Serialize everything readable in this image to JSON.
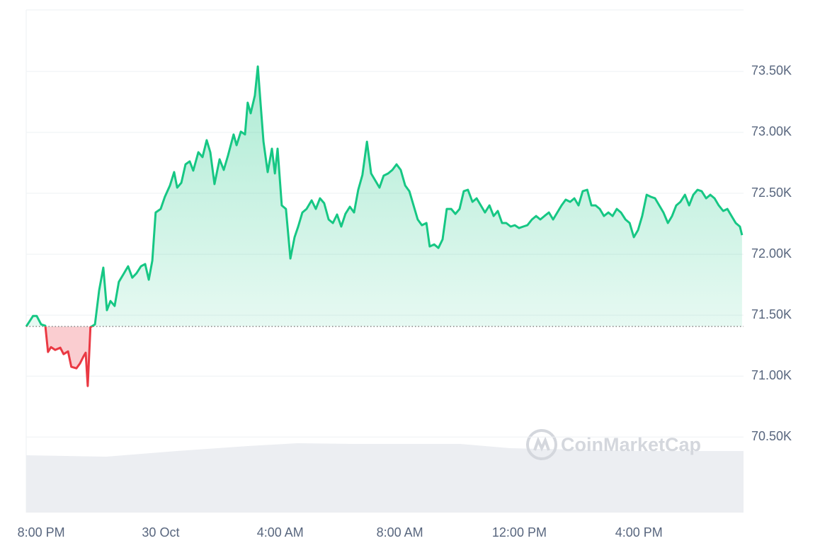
{
  "chart_data": {
    "type": "line",
    "watermark": "CoinMarketCap",
    "color": "#16c784",
    "negative_color": "#ea3943",
    "x": [
      -4.5,
      -4.27,
      -4.15,
      -4.0,
      -3.86,
      -3.77,
      -3.67,
      -3.53,
      -3.36,
      -3.25,
      -3.1,
      -2.99,
      -2.82,
      -2.7,
      -2.58,
      -2.51,
      -2.44,
      -2.35,
      -2.2,
      -2.06,
      -1.92,
      -1.8,
      -1.68,
      -1.54,
      -1.4,
      -1.23,
      -1.09,
      -0.95,
      -0.81,
      -0.66,
      -0.52,
      -0.4,
      -0.28,
      -0.17,
      0.0,
      0.14,
      0.31,
      0.45,
      0.55,
      0.69,
      0.83,
      0.97,
      1.09,
      1.26,
      1.4,
      1.54,
      1.66,
      1.8,
      1.97,
      2.11,
      2.25,
      2.44,
      2.54,
      2.68,
      2.82,
      2.91,
      3.01,
      3.15,
      3.25,
      3.34,
      3.44,
      3.58,
      3.72,
      3.82,
      3.91,
      4.05,
      4.19,
      4.34,
      4.48,
      4.6,
      4.74,
      4.88,
      5.05,
      5.19,
      5.33,
      5.47,
      5.62,
      5.76,
      5.9,
      6.04,
      6.18,
      6.33,
      6.47,
      6.61,
      6.75,
      6.9,
      7.04,
      7.18,
      7.32,
      7.46,
      7.61,
      7.75,
      7.89,
      8.03,
      8.18,
      8.32,
      8.46,
      8.6,
      8.74,
      8.89,
      9.0,
      9.15,
      9.29,
      9.43,
      9.57,
      9.72,
      9.86,
      10.0,
      10.14,
      10.28,
      10.43,
      10.57,
      10.71,
      10.85,
      11.0,
      11.14,
      11.28,
      11.42,
      11.56,
      11.71,
      11.85,
      11.99,
      12.13,
      12.27,
      12.42,
      12.56,
      12.7,
      12.84,
      12.99,
      13.13,
      13.27,
      13.41,
      13.55,
      13.7,
      13.84,
      13.98,
      14.12,
      14.27,
      14.41,
      14.55,
      14.69,
      14.83,
      14.98,
      15.12,
      15.26,
      15.4,
      15.55,
      15.69,
      15.83,
      15.97,
      16.11,
      16.26,
      16.4,
      16.54,
      16.68,
      16.82,
      16.97,
      17.11,
      17.25,
      17.39,
      17.54,
      17.68,
      17.82,
      17.96,
      18.1,
      18.25,
      18.39,
      18.53,
      18.67,
      18.82,
      18.96,
      19.1,
      19.24,
      19.38,
      19.45
    ],
    "series": [
      {
        "values": [
          71407,
          71494,
          71494,
          71424,
          71413,
          71198,
          71238,
          71215,
          71233,
          71180,
          71203,
          71076,
          71064,
          71105,
          71163,
          71192,
          70919,
          71401,
          71424,
          71703,
          71890,
          71541,
          71616,
          71576,
          71773,
          71843,
          71901,
          71808,
          71843,
          71901,
          71919,
          71791,
          71948,
          72343,
          72372,
          72471,
          72564,
          72674,
          72547,
          72587,
          72738,
          72762,
          72686,
          72837,
          72797,
          72936,
          72837,
          72576,
          72779,
          72692,
          72808,
          72983,
          72895,
          73006,
          72983,
          73244,
          73157,
          73302,
          73541,
          73244,
          72924,
          72674,
          72866,
          72663,
          72866,
          72401,
          72372,
          71965,
          72140,
          72227,
          72343,
          72372,
          72442,
          72372,
          72459,
          72419,
          72285,
          72256,
          72326,
          72227,
          72331,
          72390,
          72343,
          72529,
          72651,
          72924,
          72663,
          72605,
          72547,
          72645,
          72663,
          72692,
          72738,
          72692,
          72564,
          72517,
          72401,
          72285,
          72238,
          72256,
          72064,
          72081,
          72052,
          72122,
          72372,
          72372,
          72331,
          72372,
          72517,
          72529,
          72430,
          72459,
          72401,
          72343,
          72401,
          72314,
          72355,
          72256,
          72256,
          72227,
          72238,
          72215,
          72227,
          72238,
          72285,
          72314,
          72285,
          72314,
          72343,
          72285,
          72343,
          72401,
          72448,
          72430,
          72459,
          72401,
          72517,
          72529,
          72401,
          72401,
          72372,
          72314,
          72343,
          72314,
          72372,
          72343,
          72285,
          72256,
          72140,
          72198,
          72314,
          72488,
          72471,
          72459,
          72401,
          72343,
          72256,
          72314,
          72401,
          72430,
          72488,
          72401,
          72488,
          72529,
          72517,
          72459,
          72488,
          72459,
          72401,
          72355,
          72372,
          72314,
          72256,
          72227,
          72157
        ]
      }
    ],
    "xlim": [
      -4.5,
      19.5
    ],
    "xticks": [
      {
        "value": -4,
        "label": "8:00 PM"
      },
      {
        "value": 0,
        "label": "30 Oct"
      },
      {
        "value": 4,
        "label": "4:00 AM"
      },
      {
        "value": 8,
        "label": "8:00 AM"
      },
      {
        "value": 12,
        "label": "12:00 PM"
      },
      {
        "value": 16,
        "label": "4:00 PM"
      }
    ],
    "ylim": [
      69880,
      74005
    ],
    "yticks": [
      {
        "value": 70500,
        "label": "70.50K"
      },
      {
        "value": 71000,
        "label": "71.00K"
      },
      {
        "value": 71500,
        "label": "71.50K"
      },
      {
        "value": 72000,
        "label": "72.00K"
      },
      {
        "value": 72500,
        "label": "72.50K"
      },
      {
        "value": 73000,
        "label": "73.00K"
      },
      {
        "value": 73500,
        "label": "73.50K"
      }
    ],
    "grid": true
  }
}
